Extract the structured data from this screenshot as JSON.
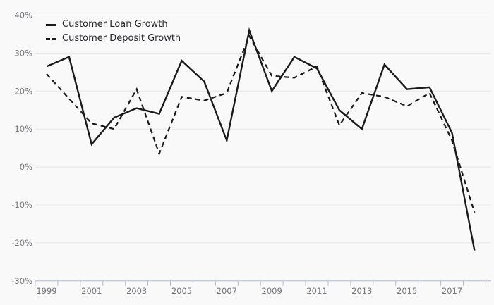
{
  "chart_data": {
    "type": "line",
    "title": "",
    "xlabel": "",
    "ylabel": "",
    "x": [
      1999,
      2000,
      2001,
      2002,
      2003,
      2004,
      2005,
      2006,
      2007,
      2008,
      2009,
      2010,
      2011,
      2012,
      2013,
      2014,
      2015,
      2016,
      2017,
      2018
    ],
    "x_tick_labels": [
      "1999",
      "2001",
      "2003",
      "2005",
      "2007",
      "2009",
      "2011",
      "2013",
      "2015",
      "2017"
    ],
    "x_tick_label_years": [
      1999,
      2001,
      2003,
      2005,
      2007,
      2009,
      2011,
      2013,
      2015,
      2017
    ],
    "y_tick_labels": [
      "40%",
      "30%",
      "20%",
      "10%",
      "0%",
      "-10%",
      "-20%",
      "-30%"
    ],
    "y_tick_values": [
      40,
      30,
      20,
      10,
      0,
      -10,
      -20,
      -30
    ],
    "ylim": [
      -30,
      40
    ],
    "grid": "horizontal-only",
    "legend_position": "top-left",
    "series": [
      {
        "name": "Customer Loan Growth",
        "line_style": "solid",
        "color": "#1a1a1a",
        "values": [
          26.5,
          29,
          6,
          13,
          15.5,
          14,
          28,
          22.5,
          7,
          36,
          20,
          29,
          26,
          15,
          10,
          27,
          20.5,
          21,
          9,
          -22
        ]
      },
      {
        "name": "Customer Deposit Growth",
        "line_style": "dashed",
        "color": "#1a1a1a",
        "values": [
          24.5,
          18,
          11.5,
          10,
          20.5,
          3.5,
          18.5,
          17.5,
          19.5,
          34.5,
          24,
          23.5,
          26.5,
          11,
          19.5,
          18.5,
          16,
          19.5,
          7,
          -12
        ]
      }
    ],
    "colors": {
      "background": "#f9f9f9",
      "grid": "#e7e7e7",
      "axis": "#b3bcd2",
      "tick_label": "#75757b",
      "legend_text": "#26262b"
    }
  }
}
